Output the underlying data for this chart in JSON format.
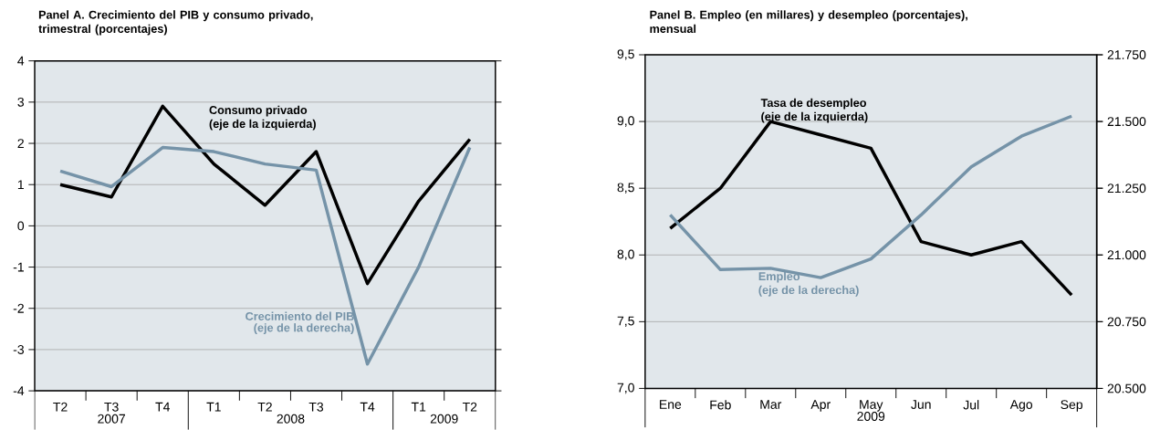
{
  "chart_data": [
    {
      "type": "line",
      "title": "Panel A.  Crecimiento del PIB y consumo privado, trimestral (porcentajes)",
      "categories": [
        "T2",
        "T3",
        "T4",
        "T1",
        "T2",
        "T3",
        "T4",
        "T1",
        "T2"
      ],
      "series": [
        {
          "name": "Consumo privado",
          "color": "#000000",
          "values": [
            1.0,
            0.7,
            2.9,
            1.5,
            0.5,
            1.8,
            -1.4,
            0.6,
            2.1
          ]
        },
        {
          "name": "Crecimiento del PIB",
          "color": "#7593a8",
          "values": [
            1.33,
            0.95,
            1.9,
            1.8,
            1.5,
            1.35,
            -3.35,
            -1.0,
            1.9
          ]
        }
      ],
      "ylim": [
        -4,
        4
      ],
      "yticks": [
        -4,
        -3,
        -2,
        -1,
        0,
        1,
        2,
        3,
        4
      ],
      "grid": "y",
      "annotations": [
        "(eje de la izquierda)",
        "(eje de la derecha)",
        "2007",
        "2008",
        "2009"
      ]
    },
    {
      "type": "line",
      "title": "Panel B.  Empleo (en millares) y desempleo (porcentajes), mensual",
      "categories": [
        "Ene",
        "Feb",
        "Mar",
        "Apr",
        "May",
        "Jun",
        "Jul",
        "Ago",
        "Sep"
      ],
      "series": [
        {
          "name": "Tasa de desempleo",
          "color": "#000000",
          "values": [
            8.2,
            8.5,
            9.0,
            8.9,
            8.8,
            8.1,
            8.0,
            8.1,
            7.7
          ]
        },
        {
          "name": "Empleo",
          "color": "#7593a8",
          "axis": "y2",
          "values": [
            21150,
            20945,
            20950,
            20915,
            20985,
            21150,
            21330,
            21445,
            21520
          ]
        }
      ],
      "ylim": [
        7,
        9.5
      ],
      "yticks": [
        {
          "value": 7,
          "label": "7,0"
        },
        {
          "value": 7.5,
          "label": "7,5"
        },
        {
          "value": 8,
          "label": "8,0"
        },
        {
          "value": 8.5,
          "label": "8,5"
        },
        {
          "value": 9,
          "label": "9,0"
        },
        {
          "value": 9.5,
          "label": "9,5"
        }
      ],
      "y2lim": [
        20500,
        21750
      ],
      "y2ticks": [
        {
          "value": 20500,
          "label": "20.500"
        },
        {
          "value": 20750,
          "label": "20.750"
        },
        {
          "value": 21000,
          "label": "21.000"
        },
        {
          "value": 21250,
          "label": "21.250"
        },
        {
          "value": 21500,
          "label": "21.500"
        },
        {
          "value": 21750,
          "label": "21.750"
        }
      ],
      "grid": "y",
      "annotations": [
        "(eje de la izquierda)",
        "(eje de la derecha)",
        "2009"
      ]
    }
  ]
}
